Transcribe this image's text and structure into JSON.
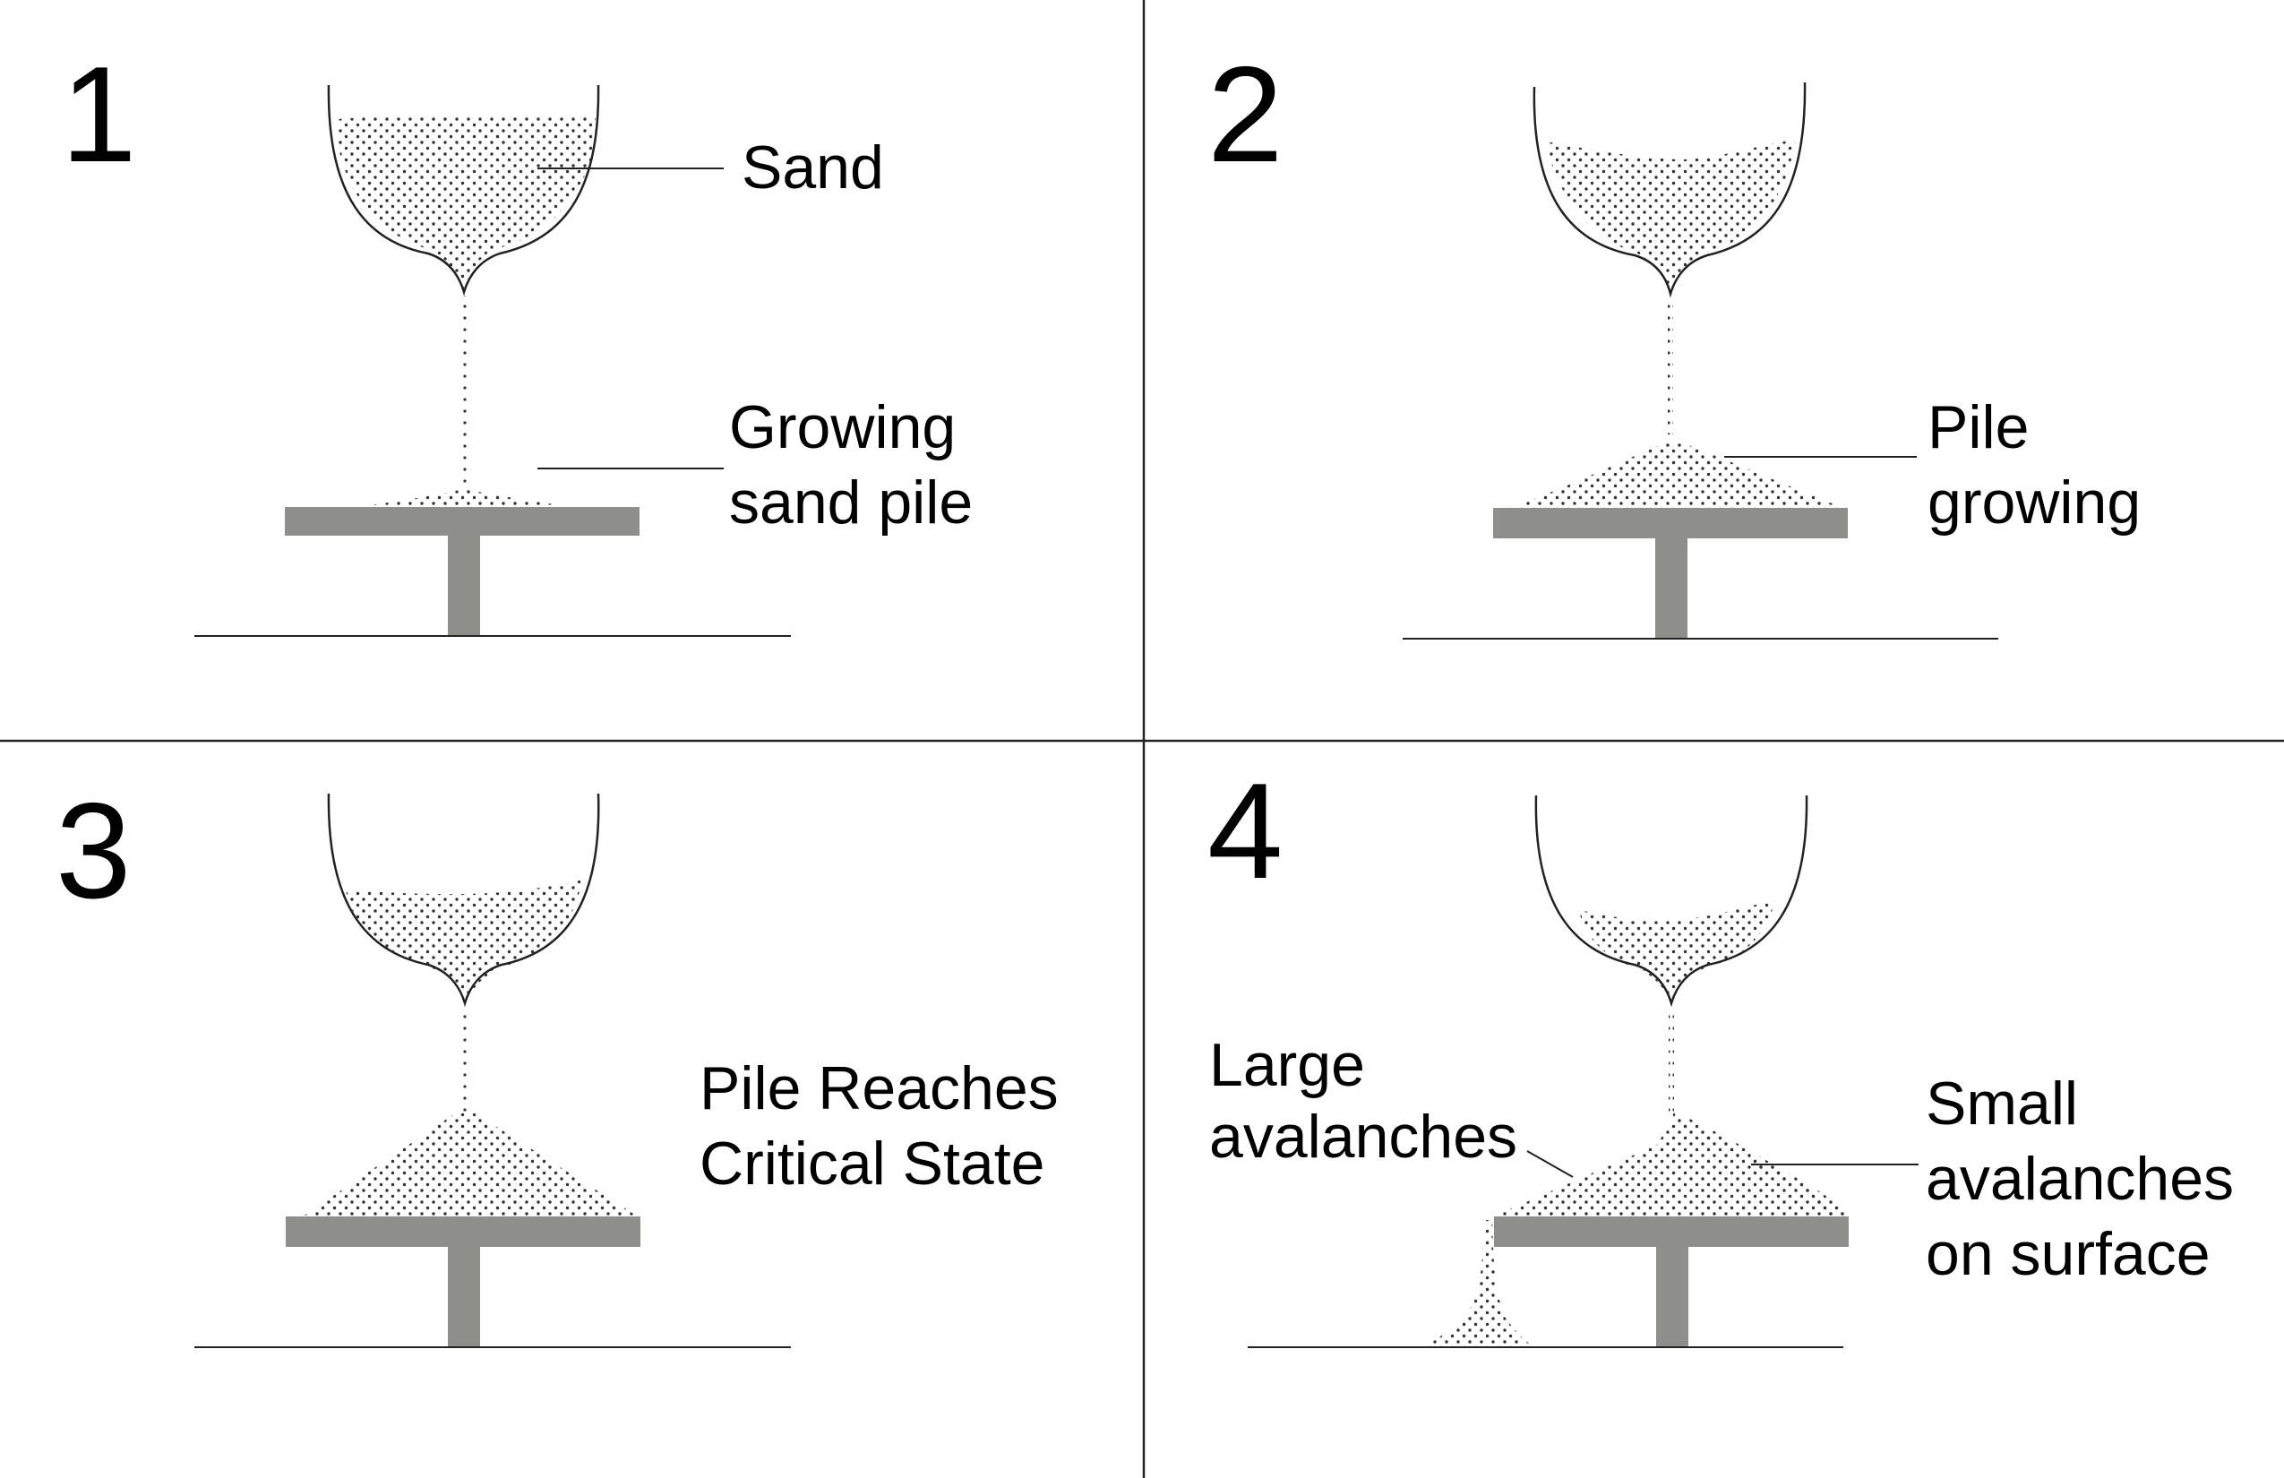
{
  "panels": [
    {
      "number": "1",
      "labels": [
        [
          "Sand"
        ],
        [
          "Growing",
          "sand pile"
        ]
      ]
    },
    {
      "number": "2",
      "labels": [
        [
          "Pile",
          "growing"
        ]
      ]
    },
    {
      "number": "3",
      "labels": [
        [
          "Pile Reaches",
          "Critical State"
        ]
      ]
    },
    {
      "number": "4",
      "labels": [
        [
          "Large",
          "avalanches"
        ],
        [
          "Small",
          "avalanches",
          "on surface"
        ]
      ]
    }
  ],
  "colors": {
    "stand": "#8e8e8a",
    "line": "#222222",
    "sand_dots": "#333333",
    "background": "#ffffff"
  }
}
